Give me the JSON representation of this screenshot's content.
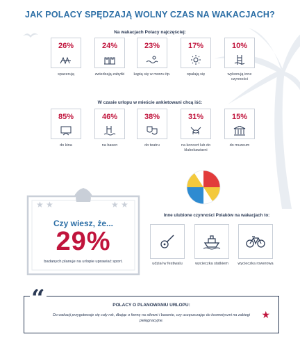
{
  "title": "JAK POLACY SPĘDZAJĄ WOLNY CZAS NA WAKACJACH?",
  "section1": {
    "label": "Na wakacjach Polacy najczęściej:",
    "items": [
      {
        "pct": "26%",
        "caption": "spacerują",
        "icon": "walking-icon"
      },
      {
        "pct": "24%",
        "caption": "zwiedzają zabytki",
        "icon": "castle-icon"
      },
      {
        "pct": "23%",
        "caption": "kąpią się w morzu itp.",
        "icon": "swimming-icon"
      },
      {
        "pct": "17%",
        "caption": "opalają się",
        "icon": "sun-icon"
      },
      {
        "pct": "10%",
        "caption": "wykonują inne czynności",
        "icon": "ladder-icon"
      }
    ]
  },
  "section2": {
    "label": "W czasie urlopu w mieście ankietowani chcą iść:",
    "items": [
      {
        "pct": "85%",
        "caption": "do kina",
        "icon": "cinema-icon"
      },
      {
        "pct": "46%",
        "caption": "na basen",
        "icon": "pool-icon"
      },
      {
        "pct": "38%",
        "caption": "do teatru",
        "icon": "theatre-masks-icon"
      },
      {
        "pct": "31%",
        "caption": "na koncert lub do klubokawiarni",
        "icon": "drums-icon"
      },
      {
        "pct": "15%",
        "caption": "do muzeum",
        "icon": "museum-icon"
      }
    ]
  },
  "did_you_know": {
    "question": "Czy wiesz, że...",
    "value": "29%",
    "text": "badanych planuje na urlopie uprawiać sport."
  },
  "other": {
    "label": "Inne ulubione czynności Polaków na wakacjach to:",
    "items": [
      {
        "caption": "udział w festiwalu",
        "icon": "guitar-icon"
      },
      {
        "caption": "wycieczka statkiem",
        "icon": "ship-icon"
      },
      {
        "caption": "wycieczka rowerowa",
        "icon": "bicycle-icon"
      }
    ]
  },
  "plan": {
    "title": "POLACY O PLANOWANIU URLOPU:",
    "text": "Do wakacji przygotowuje się cały rok, dbając o formę na siłowni i basenie, czy uczęszczając do kosmetyczni na zabiegi pielęgnacyjne."
  },
  "colors": {
    "accent_red": "#c0143c",
    "title_blue": "#2d6fa6",
    "text_navy": "#2b3a55"
  }
}
